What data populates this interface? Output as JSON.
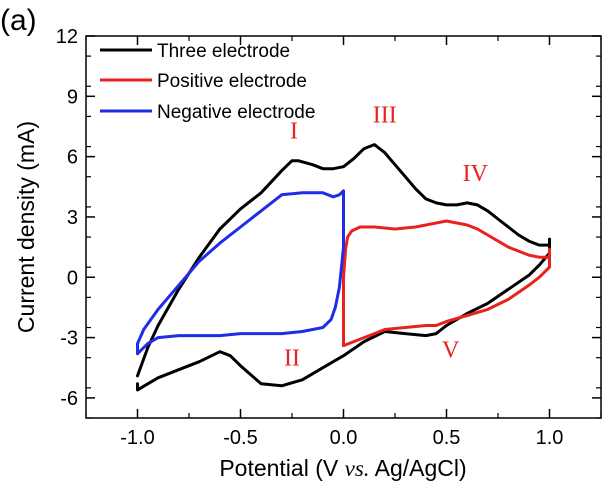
{
  "panel_label": "(a)",
  "chart_data": {
    "type": "line",
    "xlabel_parts": [
      "Potential (V ",
      "vs.",
      " Ag/AgCl)"
    ],
    "ylabel": "Current density (mA)",
    "xlim": [
      -1.25,
      1.25
    ],
    "ylim": [
      -7,
      12
    ],
    "xticks": [
      -1.0,
      -0.5,
      0.0,
      0.5,
      1.0
    ],
    "xtick_labels": [
      "-1.0",
      "-0.5",
      "0.0",
      "0.5",
      "1.0"
    ],
    "yticks": [
      -6,
      -3,
      0,
      3,
      6,
      9,
      12
    ],
    "ytick_labels": [
      "-6",
      "-3",
      "0",
      "3",
      "6",
      "9",
      "12"
    ],
    "legend_position": "top-left",
    "series": [
      {
        "name": "Three electrode",
        "color": "#000000",
        "x": [
          -1.0,
          -0.95,
          -0.9,
          -0.8,
          -0.7,
          -0.6,
          -0.5,
          -0.4,
          -0.3,
          -0.25,
          -0.22,
          -0.15,
          -0.1,
          -0.05,
          0.0,
          0.05,
          0.1,
          0.15,
          0.2,
          0.25,
          0.3,
          0.35,
          0.4,
          0.45,
          0.5,
          0.55,
          0.6,
          0.65,
          0.7,
          0.75,
          0.8,
          0.85,
          0.9,
          0.95,
          1.0,
          1.0,
          1.0,
          0.95,
          0.9,
          0.8,
          0.7,
          0.6,
          0.5,
          0.45,
          0.4,
          0.3,
          0.2,
          0.1,
          0.0,
          -0.1,
          -0.2,
          -0.3,
          -0.4,
          -0.5,
          -0.55,
          -0.6,
          -0.7,
          -0.8,
          -0.9,
          -0.95,
          -1.0,
          -1.0
        ],
        "y": [
          -4.9,
          -3.5,
          -2.4,
          -0.6,
          1.0,
          2.4,
          3.4,
          4.2,
          5.3,
          5.8,
          5.8,
          5.6,
          5.4,
          5.4,
          5.5,
          5.9,
          6.4,
          6.6,
          6.2,
          5.6,
          5.0,
          4.4,
          3.9,
          3.7,
          3.6,
          3.6,
          3.7,
          3.6,
          3.3,
          2.9,
          2.5,
          2.1,
          1.8,
          1.6,
          1.6,
          1.9,
          1.2,
          0.6,
          0.1,
          -0.6,
          -1.3,
          -1.8,
          -2.4,
          -2.8,
          -2.9,
          -2.8,
          -2.7,
          -3.2,
          -3.9,
          -4.5,
          -5.1,
          -5.4,
          -5.3,
          -4.4,
          -3.9,
          -3.7,
          -4.2,
          -4.6,
          -5.0,
          -5.3,
          -5.6,
          -5.3
        ]
      },
      {
        "name": "Positive electrode",
        "color": "#e8231f",
        "x": [
          0.0,
          0.0,
          0.0,
          0.01,
          0.02,
          0.04,
          0.08,
          0.15,
          0.25,
          0.35,
          0.45,
          0.5,
          0.55,
          0.6,
          0.65,
          0.7,
          0.75,
          0.8,
          0.85,
          0.9,
          0.95,
          1.0,
          1.0,
          1.0,
          0.95,
          0.9,
          0.8,
          0.7,
          0.6,
          0.5,
          0.45,
          0.4,
          0.3,
          0.2,
          0.15,
          0.1,
          0.05,
          0.0
        ],
        "y": [
          -3.4,
          -2.0,
          0.0,
          1.4,
          2.0,
          2.3,
          2.5,
          2.5,
          2.4,
          2.5,
          2.7,
          2.8,
          2.7,
          2.6,
          2.4,
          2.1,
          1.8,
          1.5,
          1.3,
          1.1,
          1.0,
          1.0,
          1.4,
          0.5,
          0.0,
          -0.4,
          -1.1,
          -1.6,
          -1.9,
          -2.2,
          -2.4,
          -2.4,
          -2.5,
          -2.6,
          -2.8,
          -3.0,
          -3.2,
          -3.4
        ]
      },
      {
        "name": "Negative electrode",
        "color": "#1f2ee6",
        "x": [
          -1.0,
          -1.0,
          -0.97,
          -0.9,
          -0.8,
          -0.7,
          -0.6,
          -0.5,
          -0.4,
          -0.3,
          -0.2,
          -0.1,
          -0.05,
          -0.02,
          0.0,
          0.0,
          -0.02,
          -0.04,
          -0.06,
          -0.08,
          -0.1,
          -0.2,
          -0.3,
          -0.4,
          -0.5,
          -0.6,
          -0.7,
          -0.8,
          -0.9,
          -0.95,
          -1.0
        ],
        "y": [
          -3.8,
          -3.3,
          -2.6,
          -1.6,
          -0.4,
          0.8,
          1.7,
          2.5,
          3.3,
          4.1,
          4.2,
          4.2,
          4.0,
          4.1,
          4.3,
          1.5,
          -0.5,
          -1.5,
          -2.1,
          -2.3,
          -2.5,
          -2.7,
          -2.8,
          -2.8,
          -2.8,
          -2.9,
          -2.9,
          -2.9,
          -3.0,
          -3.3,
          -3.8
        ]
      }
    ],
    "annotations": [
      {
        "text": "I",
        "x": -0.24,
        "y": 6.9,
        "color": "#e8231f"
      },
      {
        "text": "III",
        "x": 0.2,
        "y": 7.7,
        "color": "#e8231f"
      },
      {
        "text": "IV",
        "x": 0.64,
        "y": 4.8,
        "color": "#e8231f"
      },
      {
        "text": "II",
        "x": -0.25,
        "y": -4.4,
        "color": "#e8231f"
      },
      {
        "text": "V",
        "x": 0.52,
        "y": -4.0,
        "color": "#e8231f"
      }
    ]
  }
}
